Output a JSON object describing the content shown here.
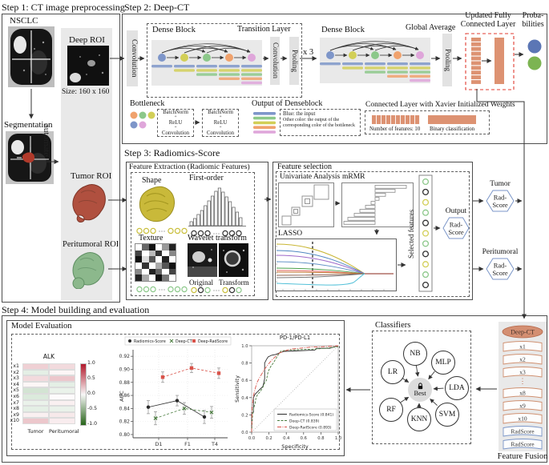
{
  "colors": {
    "node_blue": "#7e96c9",
    "node_yellow": "#d2cf57",
    "node_green": "#8cc88a",
    "node_orange": "#f0a26d",
    "node_pink": "#dfa6da",
    "salmon": "#dd9272",
    "red_dashed": "#e03b30",
    "prob_blue": "#5b76b5",
    "prob_green": "#7cb452",
    "hex_border": "#7b96c8",
    "ring_black": "#333333",
    "series_black": "#2b2b2b",
    "series_green": "#4a7d3f",
    "series_red": "#d9534a"
  },
  "step1": {
    "title": "Step 1: CT image preprocessing",
    "nsclc": "NSCLC",
    "segmentation": "Segmentation",
    "automate": "automate",
    "deep_roi": "Deep ROI",
    "size": "Size: 160 x 160",
    "tumor_roi": "Tumor ROI",
    "peritumoral_roi": "Peritumoral ROI"
  },
  "step2": {
    "title": "Step 2: Deep-CT",
    "convolution": "Convolution",
    "dense_block": "Dense Block",
    "transition_layer": "Transition Layer",
    "convolution2": "Convolution",
    "pooling": "Pooling",
    "times3": "x 3",
    "dense_block2": "Dense Block",
    "global_average": "Global Average",
    "pooling2": "Pooling",
    "fc_line1": "Updated Fully",
    "fc_line2": "Connected Layer",
    "prob_line1": "Proba-",
    "prob_line2": "bilities",
    "bottleneck": {
      "title": "Bottleneck",
      "items": [
        "BatchNorm",
        "ReLU",
        "Convolution"
      ],
      "plus": "+"
    },
    "dense_output": {
      "title": "Output of Denseblock",
      "line1": "Blue: the input",
      "line2": "Other color: the output of the corresponding color of the bottleneck"
    },
    "xavier": {
      "title": "Connected Layer with Xavier Initialized Weights",
      "features": "Number of features: 10",
      "binary": "Binary classification"
    }
  },
  "step3": {
    "title": "Step 3: Radiomics-Score",
    "extraction": {
      "title": "Feature Extraction (Radiomic Features)",
      "shape": "Shape",
      "first_order": "First-order",
      "texture": "Texture",
      "wavelet": "Wavelet transform",
      "original": "Original",
      "transform": "Transform",
      "dots": "⋯"
    },
    "selection": {
      "title": "Feature selection",
      "univariate": "Univariate Analysis",
      "mrmr": "mRMR",
      "lasso": "LASSO",
      "selected": "Selected features",
      "output": "Output"
    },
    "hexagon": {
      "line1": "Rad-",
      "line2": "Score"
    },
    "tumor": "Tumor",
    "peritumoral": "Peritumoral"
  },
  "step4": {
    "title": "Step 4: Model building and evaluation",
    "model_eval_title": "Model Evaluation",
    "classifiers": {
      "title": "Classifiers",
      "items": [
        "NB",
        "MLP",
        "LR",
        "LDA",
        "RF",
        "KNN",
        "SVM"
      ],
      "best": "Best"
    },
    "fusion": {
      "title": "Feature Fusion",
      "top": "Deep-CT",
      "bands": [
        "x1",
        "x2",
        "x3",
        "⋮",
        "x8",
        "x9",
        "x10",
        "RadScore",
        "RadScore"
      ]
    }
  },
  "chart_data": [
    {
      "type": "heatmap",
      "title": "ALK",
      "rows": [
        "x1",
        "x2",
        "x3",
        "x4",
        "x5",
        "x6",
        "x7",
        "x8",
        "x9",
        "x10"
      ],
      "columns": [
        "Tumor",
        "Peritumoral"
      ],
      "values": [
        [
          0.25,
          0.2
        ],
        [
          -0.15,
          0.05
        ],
        [
          0.2,
          0.3
        ],
        [
          0.05,
          -0.15
        ],
        [
          -0.25,
          -0.12
        ],
        [
          -0.2,
          0.02
        ],
        [
          -0.12,
          0.08
        ],
        [
          -0.15,
          -0.12
        ],
        [
          0.08,
          0.12
        ],
        [
          0.3,
          0.1
        ]
      ],
      "colorbar_ticks": [
        "1.0",
        "0.5",
        "0.0",
        "-0.5",
        "-1.0"
      ],
      "colorbar_range": [
        1,
        -1
      ],
      "legend_position": "right"
    },
    {
      "type": "scatter",
      "title": "",
      "ylabel": "AUC",
      "categories": [
        "D1",
        "F1",
        "T4"
      ],
      "yticks": [
        "0.92",
        "0.90",
        "0.88",
        "0.86",
        "0.84",
        "0.82",
        "0.80"
      ],
      "ylim": [
        0.795,
        0.93
      ],
      "grid": true,
      "legend_position": "top",
      "series": [
        {
          "name": "Radiomics-Score",
          "marker": "circle",
          "color": "#2b2b2b",
          "values": [
            0.842,
            0.852,
            0.827
          ],
          "errors": [
            0.01,
            0.008,
            0.01
          ]
        },
        {
          "name": "Deep-CT",
          "marker": "x",
          "color": "#4a7d3f",
          "values": [
            0.825,
            0.84,
            0.834
          ],
          "errors": [
            0.01,
            0.009,
            0.009
          ]
        },
        {
          "name": "Deep-RadScore",
          "marker": "square",
          "color": "#d9534a",
          "values": [
            0.888,
            0.902,
            0.894
          ],
          "errors": [
            0.008,
            0.007,
            0.008
          ]
        }
      ]
    },
    {
      "type": "line",
      "title": "PD-1/PD-L1",
      "xlabel": "Specificity",
      "ylabel": "Sensitivity",
      "xticks": [
        "0.0",
        "0.2",
        "0.4",
        "0.6",
        "0.8",
        "1.0"
      ],
      "yticks": [
        "0.0",
        "0.2",
        "0.4",
        "0.6",
        "0.8",
        "1.0"
      ],
      "xlim": [
        0,
        1
      ],
      "ylim": [
        0,
        1
      ],
      "legend_position": "lower right",
      "legend": [
        "Radiomics-Score (0.841)",
        "Deep-CT (0.839)",
        "Deep-RadScore (0.893)"
      ],
      "series": [
        {
          "name": "Radiomics-Score (0.841)",
          "color": "#2b2b2b",
          "dash": "solid",
          "points": [
            [
              0,
              0
            ],
            [
              0,
              0.23
            ],
            [
              0.02,
              0.23
            ],
            [
              0.02,
              0.4
            ],
            [
              0.04,
              0.44
            ],
            [
              0.07,
              0.47
            ],
            [
              0.1,
              0.5
            ],
            [
              0.13,
              0.53
            ],
            [
              0.14,
              0.57
            ],
            [
              0.15,
              0.62
            ],
            [
              0.15,
              0.8
            ],
            [
              0.17,
              0.84
            ],
            [
              0.19,
              0.87
            ],
            [
              0.23,
              0.89
            ],
            [
              0.28,
              0.9
            ],
            [
              0.33,
              0.92
            ],
            [
              0.38,
              0.935
            ],
            [
              0.5,
              0.94
            ],
            [
              0.62,
              0.945
            ],
            [
              0.73,
              0.95
            ],
            [
              0.75,
              0.97
            ],
            [
              0.9,
              0.97
            ],
            [
              1,
              1
            ]
          ]
        },
        {
          "name": "Deep-CT (0.839)",
          "color": "#4a7d3f",
          "dash": "dashed",
          "points": [
            [
              0,
              0
            ],
            [
              0.01,
              0.2
            ],
            [
              0.02,
              0.27
            ],
            [
              0.04,
              0.33
            ],
            [
              0.05,
              0.4
            ],
            [
              0.07,
              0.44
            ],
            [
              0.1,
              0.47
            ],
            [
              0.13,
              0.52
            ],
            [
              0.15,
              0.57
            ],
            [
              0.17,
              0.6
            ],
            [
              0.19,
              0.7
            ],
            [
              0.22,
              0.76
            ],
            [
              0.25,
              0.8
            ],
            [
              0.28,
              0.85
            ],
            [
              0.31,
              0.9
            ],
            [
              0.34,
              0.94
            ],
            [
              0.42,
              0.95
            ],
            [
              0.55,
              0.955
            ],
            [
              0.7,
              0.96
            ],
            [
              0.85,
              0.97
            ],
            [
              1,
              0.99
            ]
          ]
        },
        {
          "name": "Deep-RadScore (0.893)",
          "color": "#d9534a",
          "dash": "dashdot",
          "points": [
            [
              0,
              0
            ],
            [
              0.005,
              0.28
            ],
            [
              0.02,
              0.42
            ],
            [
              0.04,
              0.5
            ],
            [
              0.06,
              0.57
            ],
            [
              0.09,
              0.63
            ],
            [
              0.12,
              0.68
            ],
            [
              0.15,
              0.73
            ],
            [
              0.18,
              0.77
            ],
            [
              0.22,
              0.82
            ],
            [
              0.26,
              0.86
            ],
            [
              0.3,
              0.9
            ],
            [
              0.33,
              0.92
            ],
            [
              0.38,
              0.94
            ],
            [
              0.45,
              0.96
            ],
            [
              0.55,
              0.97
            ],
            [
              0.7,
              0.985
            ],
            [
              0.85,
              0.99
            ],
            [
              1,
              1
            ]
          ]
        }
      ]
    }
  ]
}
